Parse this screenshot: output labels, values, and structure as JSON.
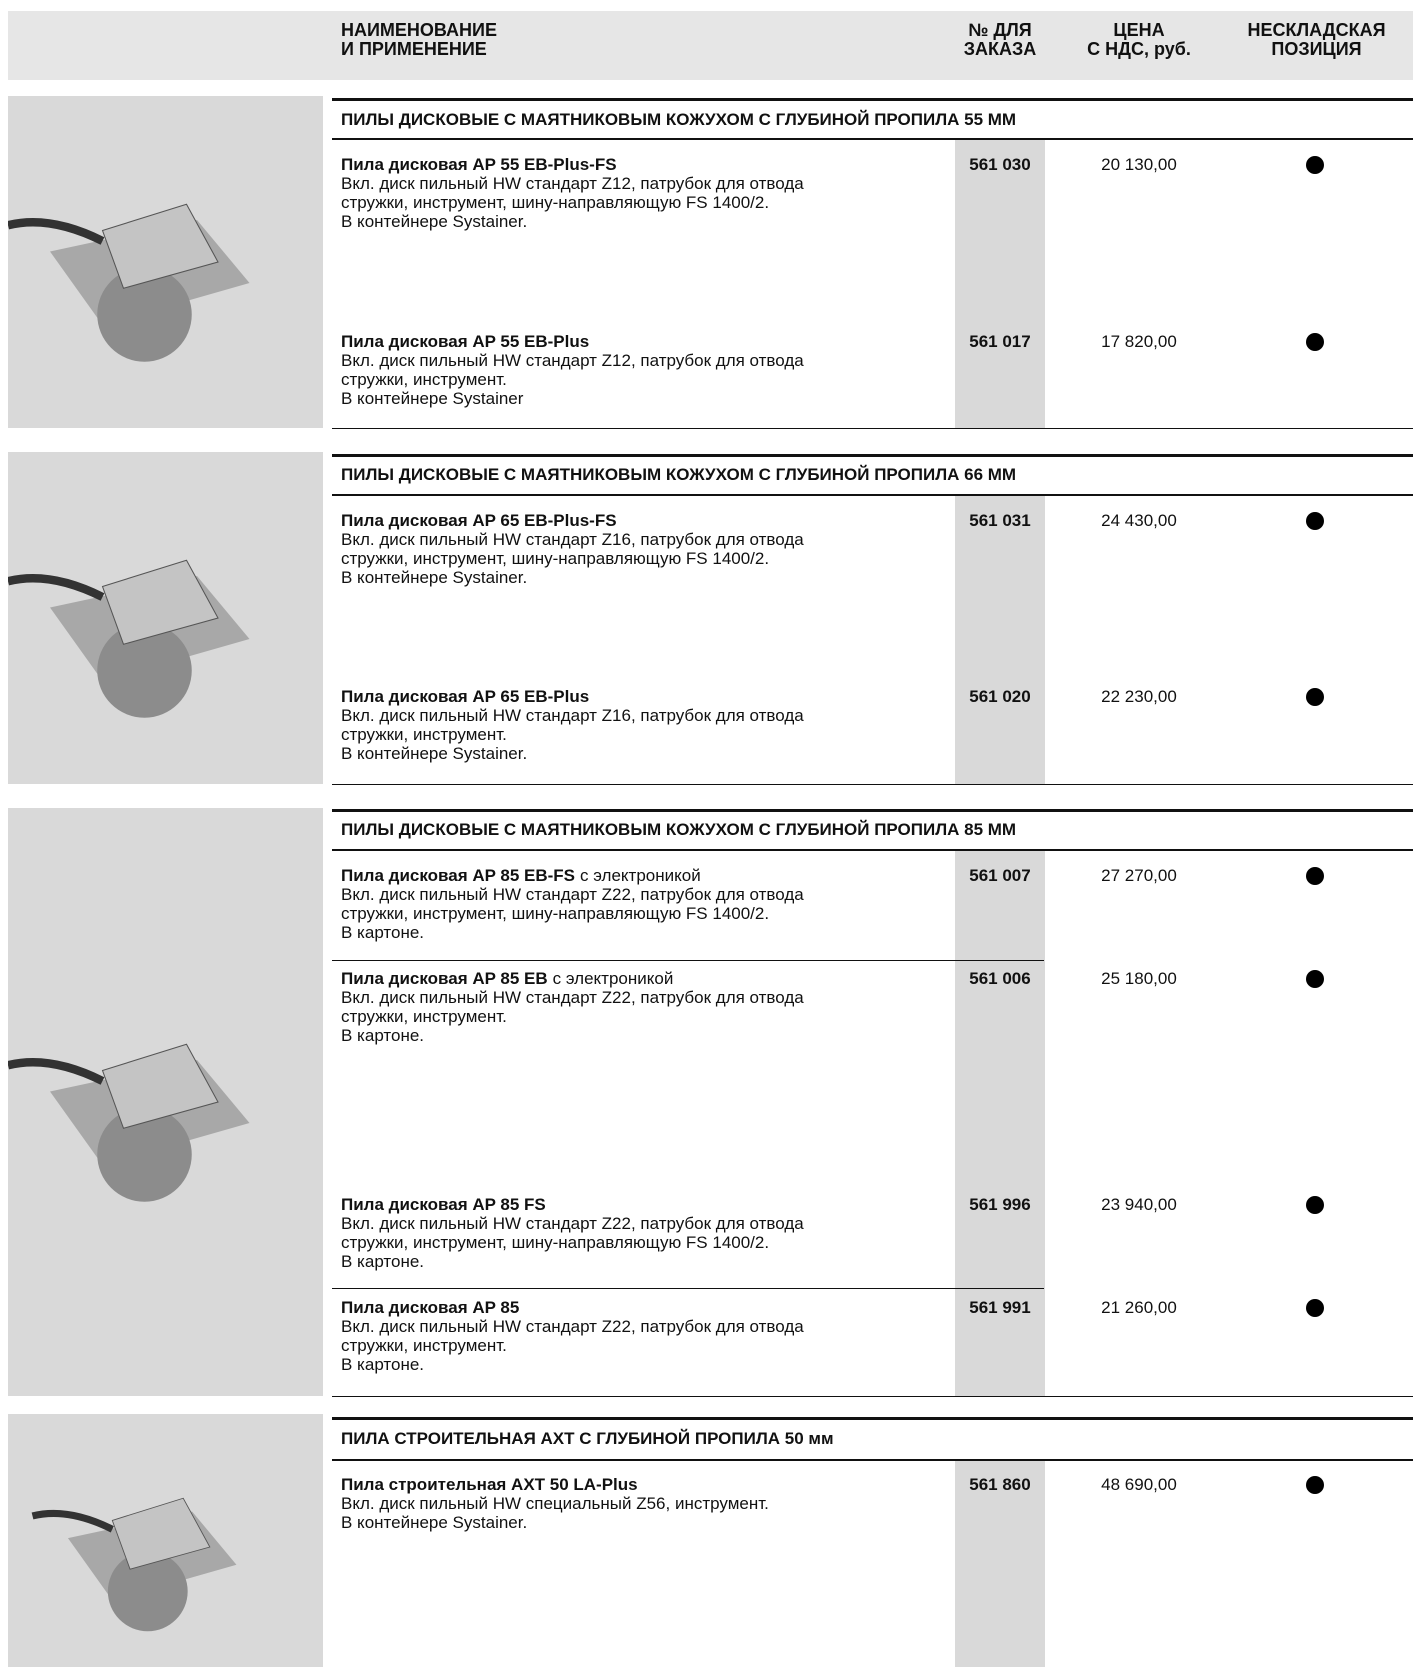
{
  "header": {
    "name": [
      "НАИМЕНОВАНИЕ",
      "И  ПРИМЕНЕНИЕ"
    ],
    "order": [
      "№ ДЛЯ",
      "ЗАКАЗА"
    ],
    "price": [
      "ЦЕНА",
      "С НДС, руб."
    ],
    "nonstock": [
      "НЕСКЛАДСКАЯ",
      "ПОЗИЦИЯ"
    ]
  },
  "sections": [
    {
      "title": "ПИЛЫ ДИСКОВЫЕ С МАЯТНИКОВЫМ КОЖУХОМ С ГЛУБИНОЙ ПРОПИЛА 55 ММ",
      "items": [
        {
          "name": "Пила дисковая  AP 55 EB-Plus-FS",
          "description": [
            "Вкл. диск пильный HW стандарт Z12, патрубок для отвода",
            "стружки, инструмент, шину-направляющую FS 1400/2.",
            "В контейнере Systainer."
          ],
          "order_no": "561 030",
          "price": "20 130,00"
        },
        {
          "name": "Пила дисковая AP 55 EB-Plus",
          "description": [
            "Вкл. диск пильный HW стандарт Z12, патрубок для отвода",
            "стружки, инструмент.",
            "В контейнере Systainer"
          ],
          "order_no": "561 017",
          "price": "17 820,00"
        }
      ]
    },
    {
      "title": "ПИЛЫ ДИСКОВЫЕ С МАЯТНИКОВЫМ КОЖУХОМ С ГЛУБИНОЙ ПРОПИЛА 66 ММ",
      "items": [
        {
          "name": "Пила дисковая  AP 65 EB-Plus-FS",
          "description": [
            "Вкл. диск пильный HW стандарт Z16, патрубок для отвода",
            "стружки, инструмент, шину-направляющую FS 1400/2.",
            "В контейнере Systainer."
          ],
          "order_no": "561 031",
          "price": "24 430,00"
        },
        {
          "name": "Пила дисковая AP 65 EB-Plus",
          "description": [
            "Вкл. диск пильный HW стандарт Z16, патрубок для отвода",
            "стружки, инструмент.",
            "В контейнере Systainer."
          ],
          "order_no": "561 020",
          "price": "22 230,00"
        }
      ]
    },
    {
      "title": "ПИЛЫ ДИСКОВЫЕ С МАЯТНИКОВЫМ КОЖУХОМ С ГЛУБИНОЙ ПРОПИЛА 85 ММ",
      "items": [
        {
          "name": "Пила дисковая  AP 85 EB-FS",
          "note": "с электроникой",
          "description": [
            "Вкл. диск пильный HW стандарт Z22, патрубок для отвода",
            "стружки, инструмент, шину-направляющую FS 1400/2.",
            "В картоне."
          ],
          "order_no": "561 007",
          "price": "27 270,00"
        },
        {
          "name": "Пила дисковая AP 85 EB",
          "note": "с электроникой",
          "description": [
            "Вкл. диск пильный HW стандарт Z22, патрубок для отвода",
            "стружки, инструмент.",
            "В картоне."
          ],
          "order_no": "561 006",
          "price": "25 180,00"
        },
        {
          "name": "Пила дисковая  AP 85 FS",
          "description": [
            "Вкл. диск пильный HW стандарт Z22, патрубок для отвода",
            "стружки, инструмент, шину-направляющую FS 1400/2.",
            "В картоне."
          ],
          "order_no": "561 996",
          "price": "23 940,00"
        },
        {
          "name": "Пила дисковая AP 85",
          "description": [
            "Вкл. диск пильный HW стандарт Z22, патрубок для отвода",
            "стружки, инструмент.",
            "В картоне."
          ],
          "order_no": "561 991",
          "price": "21 260,00"
        }
      ]
    },
    {
      "title": "ПИЛА СТРОИТЕЛЬНАЯ AXT С ГЛУБИНОЙ ПРОПИЛА 50 мм",
      "items": [
        {
          "name": "Пила строительная  AXT 50 LA-Plus",
          "description": [
            "Вкл. диск пильный HW специальный Z56, инструмент.",
            "В контейнере Systainer."
          ],
          "order_no": "561 860",
          "price": "48 690,00"
        }
      ]
    }
  ]
}
